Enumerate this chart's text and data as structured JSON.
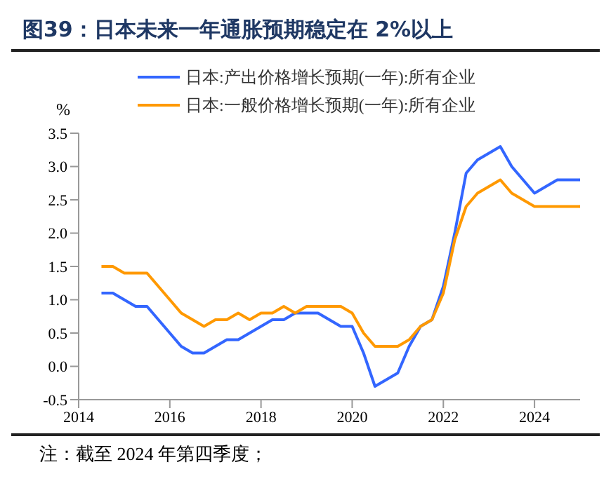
{
  "chart_data": {
    "type": "line",
    "title": "图39：日本未来一年通胀预期稳定在 2%以上",
    "ylabel": "%",
    "annotations": [
      "注：截至 2024 年第四季度；"
    ],
    "x": [
      2014.5,
      2014.75,
      2015,
      2015.25,
      2015.5,
      2015.75,
      2016,
      2016.25,
      2016.5,
      2016.75,
      2017,
      2017.25,
      2017.5,
      2017.75,
      2018,
      2018.25,
      2018.5,
      2018.75,
      2019,
      2019.25,
      2019.5,
      2019.75,
      2020,
      2020.25,
      2020.5,
      2020.75,
      2021,
      2021.25,
      2021.5,
      2021.75,
      2022,
      2022.25,
      2022.5,
      2022.75,
      2023,
      2023.25,
      2023.5,
      2023.75,
      2024,
      2024.25,
      2024.5,
      2024.75,
      2025
    ],
    "series": [
      {
        "name": "日本:产出价格增长预期(一年):所有企业",
        "color": "#3366ff",
        "values": [
          1.1,
          1.1,
          1.0,
          0.9,
          0.9,
          0.7,
          0.5,
          0.3,
          0.2,
          0.2,
          0.3,
          0.4,
          0.4,
          0.5,
          0.6,
          0.7,
          0.7,
          0.8,
          0.8,
          0.8,
          0.7,
          0.6,
          0.6,
          0.2,
          -0.3,
          -0.2,
          -0.1,
          0.3,
          0.6,
          0.7,
          1.2,
          2.0,
          2.9,
          3.1,
          3.2,
          3.3,
          3.0,
          2.8,
          2.6,
          2.7,
          2.8,
          2.8,
          2.8
        ]
      },
      {
        "name": "日本:一般价格增长预期(一年):所有企业",
        "color": "#ff9900",
        "values": [
          1.5,
          1.5,
          1.4,
          1.4,
          1.4,
          1.2,
          1.0,
          0.8,
          0.7,
          0.6,
          0.7,
          0.7,
          0.8,
          0.7,
          0.8,
          0.8,
          0.9,
          0.8,
          0.9,
          0.9,
          0.9,
          0.9,
          0.8,
          0.5,
          0.3,
          0.3,
          0.3,
          0.4,
          0.6,
          0.7,
          1.1,
          1.9,
          2.4,
          2.6,
          2.7,
          2.8,
          2.6,
          2.5,
          2.4,
          2.4,
          2.4,
          2.4,
          2.4
        ]
      }
    ],
    "xlim": [
      2014,
      2025
    ],
    "xticks": [
      2014,
      2016,
      2018,
      2020,
      2022,
      2024
    ],
    "ylim": [
      -0.5,
      3.5
    ],
    "yticks": [
      -0.5,
      {
        "value": 0,
        "label": "0.0"
      },
      0.5,
      {
        "value": 1,
        "label": "1.0"
      },
      1.5,
      {
        "value": 2,
        "label": "2.0"
      },
      2.5,
      {
        "value": 3,
        "label": "3.0"
      },
      3.5
    ],
    "grid": false,
    "legend": "top left",
    "marker": "none",
    "line_style": "solid"
  }
}
